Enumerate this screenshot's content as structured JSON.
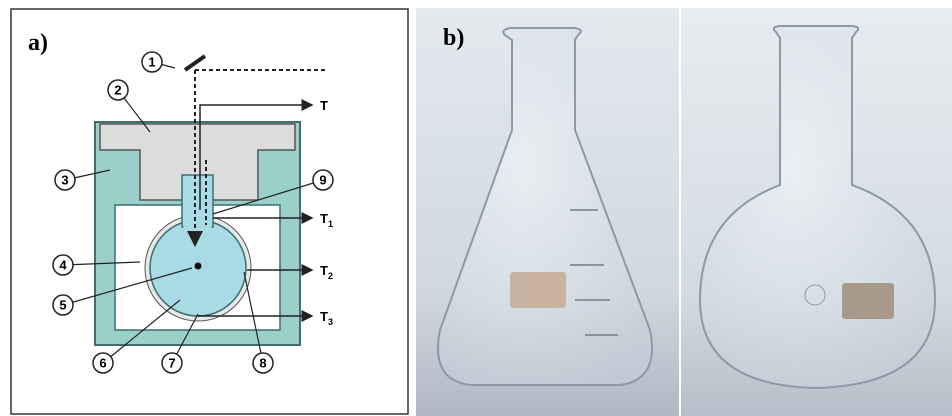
{
  "panel_a": {
    "label": "a)",
    "callouts": [
      "1",
      "2",
      "3",
      "4",
      "5",
      "6",
      "7",
      "8",
      "9"
    ],
    "outputs": [
      {
        "name": "T"
      },
      {
        "name": "T",
        "sub": "1"
      },
      {
        "name": "T",
        "sub": "2"
      },
      {
        "name": "T",
        "sub": "3"
      }
    ]
  },
  "panel_b": {
    "label": "b)"
  }
}
